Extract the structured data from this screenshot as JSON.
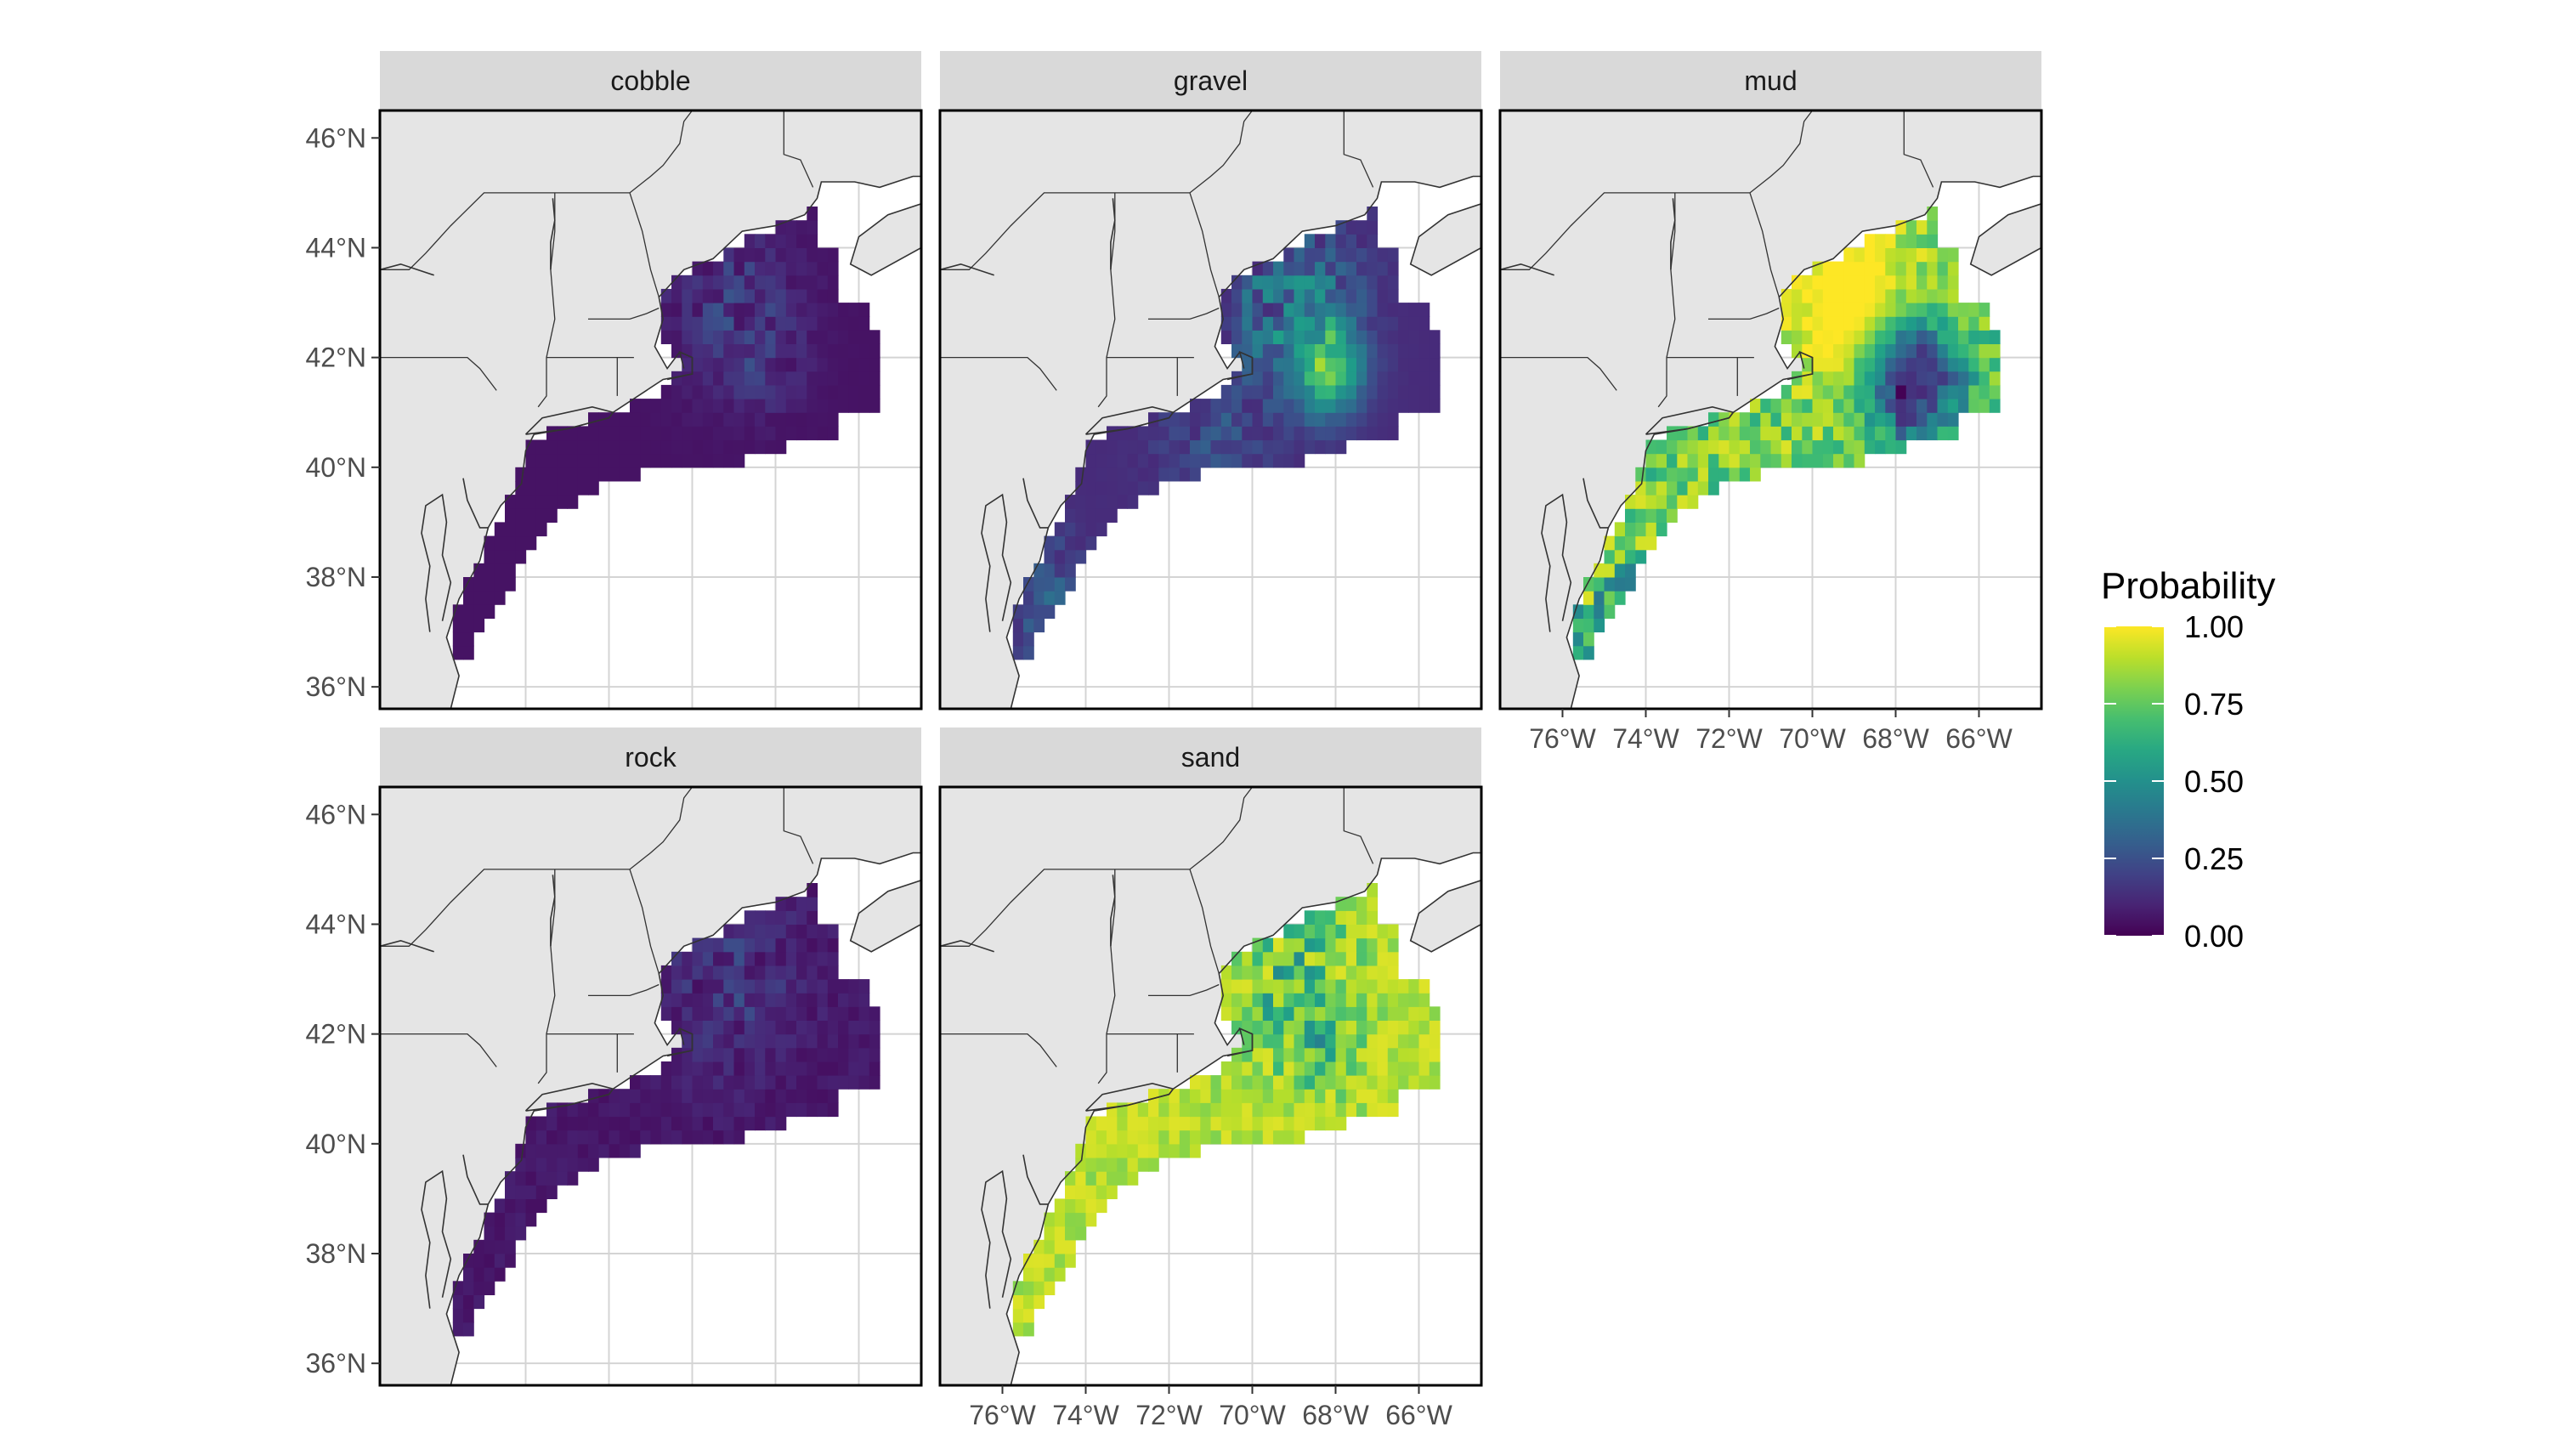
{
  "chart_data": {
    "type": "heatmap",
    "facet_titles": [
      "cobble",
      "gravel",
      "mud",
      "rock",
      "sand"
    ],
    "x_ticks": [
      "76°W",
      "74°W",
      "72°W",
      "70°W",
      "68°W",
      "66°W"
    ],
    "x_tick_values": [
      -76,
      -74,
      -72,
      -70,
      -68,
      -66
    ],
    "y_ticks": [
      "36°N",
      "38°N",
      "40°N",
      "42°N",
      "44°N",
      "46°N"
    ],
    "y_tick_values": [
      36,
      38,
      40,
      42,
      44,
      46
    ],
    "xlim": [
      -77.5,
      -64.5
    ],
    "ylim": [
      35.6,
      46.5
    ],
    "legend": {
      "title": "Probability",
      "labels": [
        "1.00",
        "0.75",
        "0.50",
        "0.25",
        "0.00"
      ],
      "values": [
        1.0,
        0.75,
        0.5,
        0.25,
        0.0
      ],
      "colors": [
        "#440154",
        "#3b528b",
        "#21908c",
        "#5dc863",
        "#fde725"
      ],
      "position": "right"
    },
    "colors": {
      "land": "#e5e5e5",
      "ocean": "#ffffff",
      "strip": "#d9d9d9",
      "grid": "#d4d4d4",
      "coast": "#333333"
    },
    "mean_probability": {
      "cobble": 0.07,
      "gravel": 0.3,
      "mud": 0.55,
      "rock": 0.05,
      "sand": 0.9
    }
  }
}
